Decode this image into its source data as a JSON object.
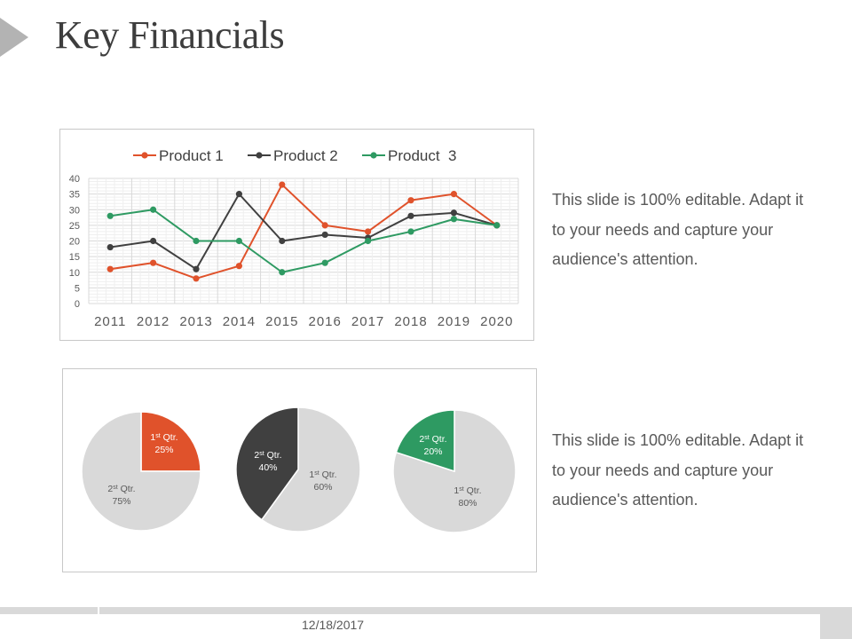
{
  "slide": {
    "title": "Key Financials",
    "description_1": "This slide is 100% editable. Adapt it to your needs and capture your audience's attention.",
    "description_2": "This slide is 100% editable. Adapt it to your needs and capture your audience's attention.",
    "footer_date": "12/18/2017"
  },
  "colors": {
    "product1": "#e0522b",
    "product2": "#404040",
    "product3": "#2e9a62",
    "pie_grey": "#d9d9d9",
    "pie_dark": "#404040"
  },
  "chart_data": [
    {
      "type": "line",
      "title": "",
      "categories": [
        "2011",
        "2012",
        "2013",
        "2014",
        "2015",
        "2016",
        "2017",
        "2018",
        "2019",
        "2020"
      ],
      "series": [
        {
          "name": "Product 1",
          "color": "#e0522b",
          "values": [
            11,
            13,
            8,
            12,
            38,
            25,
            23,
            33,
            35,
            25
          ]
        },
        {
          "name": "Product 2",
          "color": "#404040",
          "values": [
            18,
            20,
            11,
            35,
            20,
            22,
            21,
            28,
            29,
            25
          ]
        },
        {
          "name": "Product  3",
          "color": "#2e9a62",
          "values": [
            28,
            30,
            20,
            20,
            10,
            13,
            20,
            23,
            27,
            25
          ]
        }
      ],
      "ylim": [
        0,
        40
      ],
      "yticks": [
        0,
        5,
        10,
        15,
        20,
        25,
        30,
        35,
        40
      ],
      "grid": true,
      "legend": "top"
    },
    {
      "type": "pie",
      "slices": [
        {
          "label": "1st Qtr.",
          "sup": "st",
          "value": 25,
          "pct": "25%",
          "color": "#e0522b"
        },
        {
          "label": "2st Qtr.",
          "sup": "st",
          "value": 75,
          "pct": "75%",
          "color": "#d9d9d9"
        }
      ]
    },
    {
      "type": "pie",
      "slices": [
        {
          "label": "1st Qtr.",
          "sup": "st",
          "value": 60,
          "pct": "60%",
          "color": "#d9d9d9"
        },
        {
          "label": "2st Qtr.",
          "sup": "st",
          "value": 40,
          "pct": "40%",
          "color": "#404040"
        }
      ]
    },
    {
      "type": "pie",
      "slices": [
        {
          "label": "1st Qtr.",
          "sup": "st",
          "value": 80,
          "pct": "80%",
          "color": "#d9d9d9"
        },
        {
          "label": "2st Qtr.",
          "sup": "st",
          "value": 20,
          "pct": "20%",
          "color": "#2e9a62"
        }
      ]
    }
  ]
}
